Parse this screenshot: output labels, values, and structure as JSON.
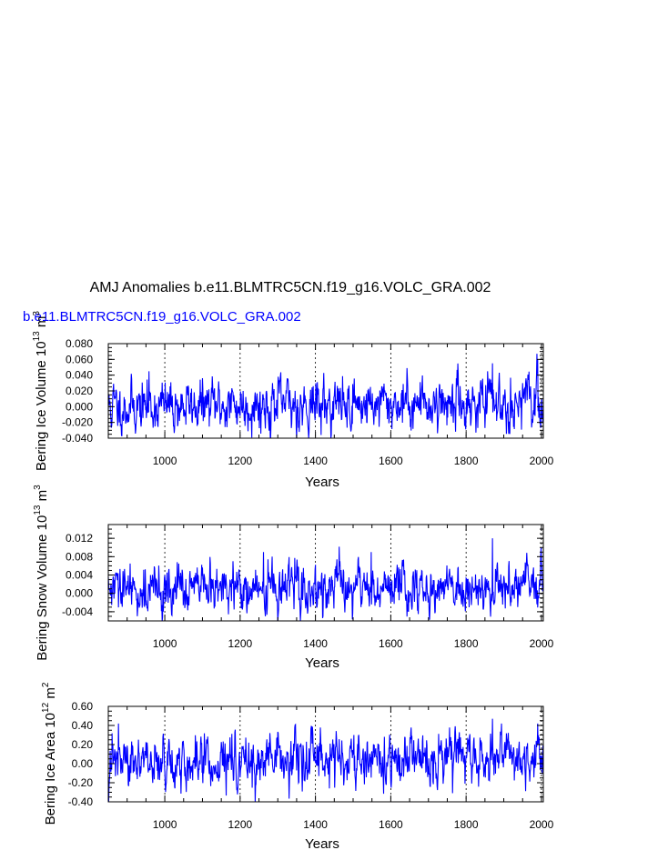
{
  "figure": {
    "title": "AMJ Anomalies b.e11.BLMTRC5CN.f19_g16.VOLC_GRA.002",
    "subtitle": "b.e11.BLMTRC5CN.f19_g16.VOLC_GRA.002",
    "overlap_label": "m3",
    "colors": {
      "series": "#0000ff",
      "subtitle": "#0000ff",
      "axes": "#000000"
    }
  },
  "chart_data": [
    {
      "type": "line",
      "title": "",
      "xlabel": "Years",
      "ylabel_parts": [
        "Bering Ice Volume 10",
        "13",
        " m",
        "3"
      ],
      "xlim": [
        850,
        2005
      ],
      "ylim": [
        -0.04,
        0.08
      ],
      "x_ticks": [
        1000,
        1200,
        1400,
        1600,
        1800,
        2000
      ],
      "x_tick_labels": [
        "1000",
        "1200",
        "1400",
        "1600",
        "1800",
        "2000"
      ],
      "y_ticks": [
        -0.04,
        -0.02,
        0,
        0.02,
        0.04,
        0.06,
        0.08
      ],
      "y_tick_labels": [
        "-0.040",
        "-0.020",
        "0.000",
        "0.020",
        "0.040",
        "0.060",
        "0.080"
      ],
      "series": [
        {
          "name": "Bering Ice Volume",
          "x_start": 850,
          "x_step": 1,
          "scale": 0.0135,
          "offset": 0.0,
          "trend": 0.006,
          "seed": 11,
          "peaks": [
            [
              1870,
              0.055
            ],
            [
              1990,
              0.06
            ],
            [
              958,
              0.045
            ]
          ]
        }
      ]
    },
    {
      "type": "line",
      "title": "",
      "xlabel": "Years",
      "ylabel_parts": [
        "Bering Snow Volume 10",
        "13",
        " m",
        "3"
      ],
      "xlim": [
        850,
        2005
      ],
      "ylim": [
        -0.006,
        0.015
      ],
      "x_ticks": [
        1000,
        1200,
        1400,
        1600,
        1800,
        2000
      ],
      "x_tick_labels": [
        "1000",
        "1200",
        "1400",
        "1600",
        "1800",
        "2000"
      ],
      "y_ticks": [
        -0.004,
        0,
        0.004,
        0.008,
        0.012
      ],
      "y_tick_labels": [
        "-0.004",
        "0.000",
        "0.004",
        "0.008",
        "0.012"
      ],
      "series": [
        {
          "name": "Bering Snow Volume",
          "x_start": 850,
          "x_step": 1,
          "scale": 0.0022,
          "offset": 0.0005,
          "trend": 0.001,
          "seed": 29,
          "peaks": [
            [
              1870,
              0.012
            ],
            [
              1262,
              0.009
            ],
            [
              1548,
              0.009
            ]
          ]
        }
      ]
    },
    {
      "type": "line",
      "title": "",
      "xlabel": "Years",
      "ylabel_parts": [
        "Bering Ice Area 10",
        "12",
        " m",
        "2"
      ],
      "xlim": [
        850,
        2005
      ],
      "ylim": [
        -0.4,
        0.6
      ],
      "x_ticks": [
        1000,
        1200,
        1400,
        1600,
        1800,
        2000
      ],
      "x_tick_labels": [
        "1000",
        "1200",
        "1400",
        "1600",
        "1800",
        "2000"
      ],
      "y_ticks": [
        -0.4,
        -0.2,
        0,
        0.2,
        0.4,
        0.6
      ],
      "y_tick_labels": [
        "-0.40",
        "-0.20",
        "0.00",
        "0.20",
        "0.40",
        "0.60"
      ],
      "series": [
        {
          "name": "Bering Ice Area",
          "x_start": 850,
          "x_step": 1,
          "scale": 0.11,
          "offset": 0.0,
          "trend": 0.05,
          "seed": 47,
          "peaks": [
            [
              1870,
              0.47
            ],
            [
              1990,
              0.42
            ],
            [
              877,
              0.42
            ]
          ]
        }
      ]
    }
  ]
}
